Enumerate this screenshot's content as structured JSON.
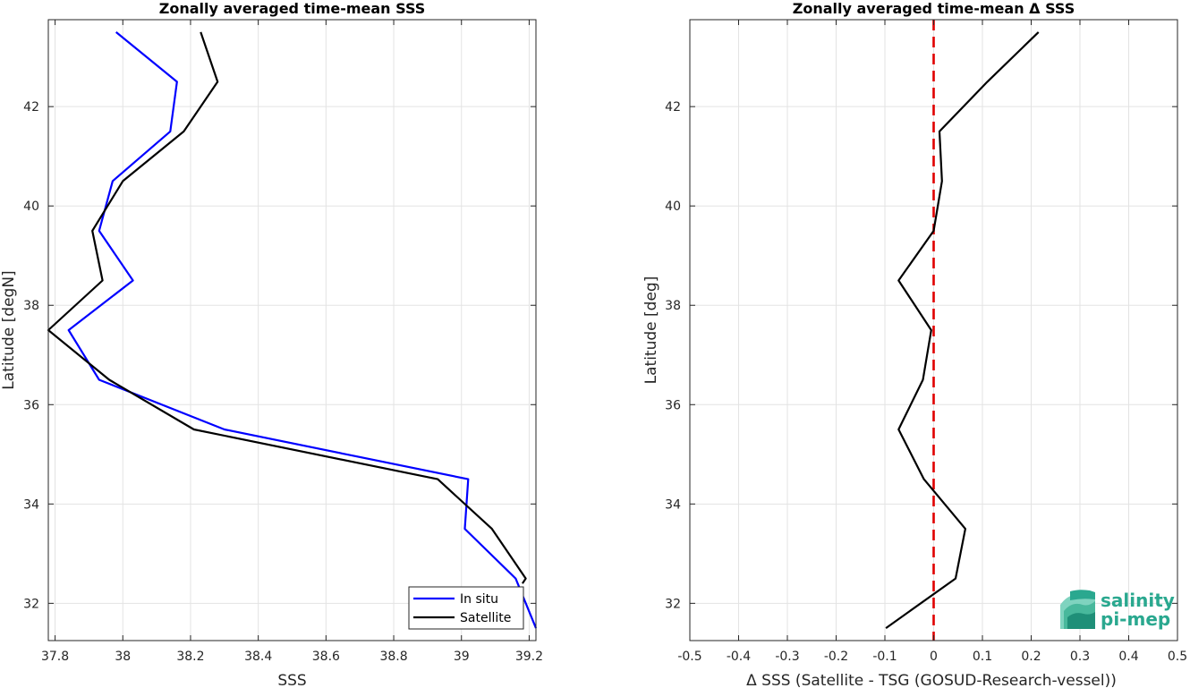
{
  "chart_data": [
    {
      "type": "line",
      "title": "Zonally averaged time-mean SSS",
      "xlabel": "SSS",
      "ylabel": "Latitude [degN]",
      "xlim": [
        37.78,
        39.22
      ],
      "ylim": [
        31.25,
        43.75
      ],
      "xticks": [
        "37.8",
        "38",
        "38.2",
        "38.4",
        "38.6",
        "38.8",
        "39",
        "39.2"
      ],
      "yticks": [
        "32",
        "34",
        "36",
        "38",
        "40",
        "42"
      ],
      "grid": true,
      "legend_position": "bottom-right",
      "series": [
        {
          "name": "In situ",
          "color": "#0000ff",
          "x": [
            37.98,
            38.16,
            38.14,
            37.97,
            37.93,
            38.03,
            37.84,
            37.93,
            38.3,
            39.02,
            39.01,
            39.16,
            39.22
          ],
          "y": [
            43.5,
            42.5,
            41.5,
            40.5,
            39.5,
            38.5,
            37.5,
            36.5,
            35.5,
            34.5,
            33.5,
            32.5,
            31.5
          ]
        },
        {
          "name": "Satellite",
          "color": "#000000",
          "x": [
            38.23,
            38.28,
            38.18,
            38.0,
            37.91,
            37.94,
            37.78,
            37.96,
            38.21,
            38.93,
            39.09,
            39.19,
            39.18
          ],
          "y": [
            43.5,
            42.5,
            41.5,
            40.5,
            39.5,
            38.5,
            37.5,
            36.5,
            35.5,
            34.5,
            33.5,
            32.5,
            32.4
          ]
        }
      ]
    },
    {
      "type": "line",
      "title": "Zonally averaged time-mean Δ SSS",
      "xlabel": "Δ SSS (Satellite - TSG (GOSUD-Research-vessel))",
      "ylabel": "Latitude [deg]",
      "xlim": [
        -0.5,
        0.5
      ],
      "ylim": [
        31.25,
        43.75
      ],
      "xticks": [
        "-0.5",
        "-0.4",
        "-0.3",
        "-0.2",
        "-0.1",
        "0",
        "0.1",
        "0.2",
        "0.3",
        "0.4",
        "0.5"
      ],
      "yticks": [
        "32",
        "34",
        "36",
        "38",
        "40",
        "42"
      ],
      "grid": true,
      "reference_line": {
        "x": 0,
        "color": "#e00000",
        "style": "dashed"
      },
      "series": [
        {
          "color": "#000000",
          "x": [
            0.215,
            0.11,
            0.012,
            0.017,
            0.0,
            -0.072,
            -0.005,
            -0.022,
            -0.072,
            -0.02,
            0.065,
            0.045,
            -0.098
          ],
          "y": [
            43.5,
            42.5,
            41.5,
            40.5,
            39.5,
            38.5,
            37.5,
            36.5,
            35.5,
            34.5,
            33.5,
            32.5,
            31.5
          ]
        }
      ]
    }
  ],
  "logo": {
    "line1": "salinity",
    "line2": "pi-mep"
  }
}
